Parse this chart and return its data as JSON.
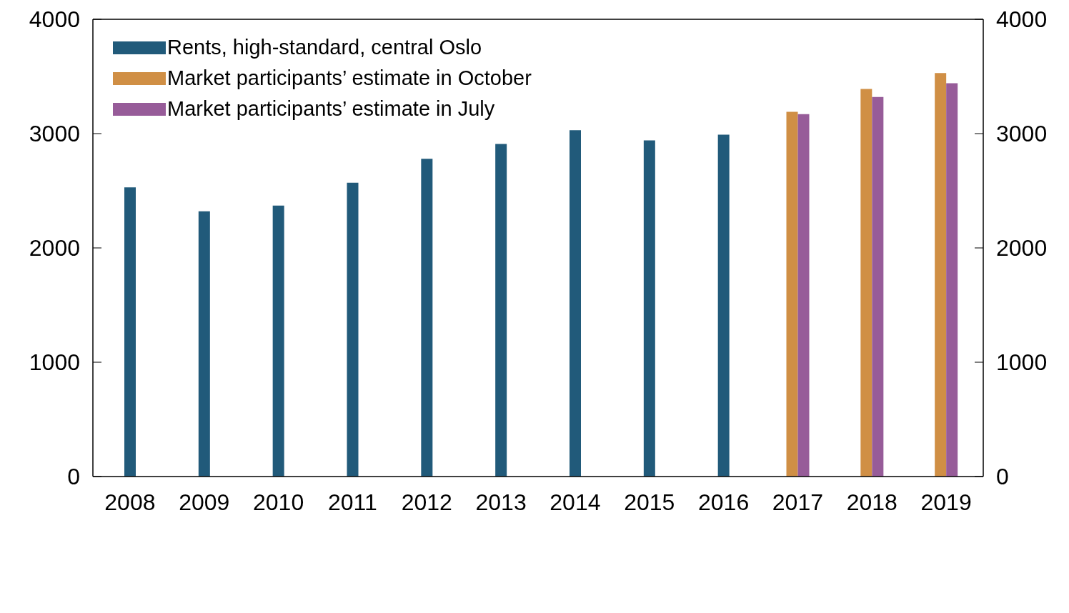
{
  "chart_data": {
    "type": "bar",
    "categories": [
      "2008",
      "2009",
      "2010",
      "2011",
      "2012",
      "2013",
      "2014",
      "2015",
      "2016",
      "2017",
      "2018",
      "2019"
    ],
    "series": [
      {
        "name": "Rents, high-standard, central Oslo",
        "color": "#215a7a",
        "values": [
          2530,
          2320,
          2370,
          2570,
          2780,
          2910,
          3030,
          2940,
          2990,
          null,
          null,
          null
        ]
      },
      {
        "name": "Market participants’ estimate in October",
        "color": "#d08f45",
        "values": [
          null,
          null,
          null,
          null,
          null,
          null,
          null,
          null,
          null,
          3190,
          3390,
          3530
        ]
      },
      {
        "name": "Market participants’ estimate in July",
        "color": "#975c99",
        "values": [
          null,
          null,
          null,
          null,
          null,
          null,
          null,
          null,
          null,
          3170,
          3320,
          3440
        ]
      }
    ],
    "ylim": [
      0,
      4000
    ],
    "yticks": [
      0,
      1000,
      2000,
      3000,
      4000
    ],
    "y2lim": [
      0,
      4000
    ],
    "y2ticks": [
      0,
      1000,
      2000,
      3000,
      4000
    ],
    "grid": false,
    "legend": "top left"
  }
}
